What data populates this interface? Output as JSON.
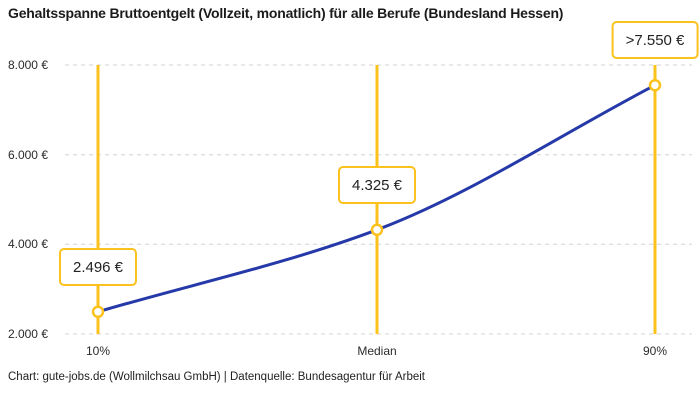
{
  "header": {
    "title": "Gehaltsspanne Bruttoentgelt (Vollzeit, monatlich) für alle Berufe (Bundesland Hessen)"
  },
  "footer": {
    "attribution": "Chart: gute-jobs.de (Wollmilchsau GmbH) | Datenquelle: Bundesagentur für Arbeit"
  },
  "colors": {
    "accent_yellow": "#FBC21E",
    "line_blue": "#2639A8",
    "gridline": "#D3D3D3",
    "marker_fill": "#FFFFFF"
  },
  "chart_data": {
    "type": "line",
    "title": "Gehaltsspanne Bruttoentgelt (Vollzeit, monatlich) für alle Berufe (Bundesland Hessen)",
    "categories": [
      "10%",
      "Median",
      "90%"
    ],
    "values": [
      2496,
      4325,
      7550
    ],
    "point_labels": [
      "2.496 €",
      "4.325 €",
      ">7.550 €"
    ],
    "ylim": [
      2000,
      8000
    ],
    "ytick_values": [
      2000,
      4000,
      6000,
      8000
    ],
    "ytick_labels": [
      "2.000 €",
      "4.000 €",
      "6.000 €",
      "8.000 €"
    ],
    "grid": "horizontal-dashed",
    "legend": "none",
    "source": "Chart: gute-jobs.de (Wollmilchsau GmbH) | Datenquelle: Bundesagentur für Arbeit"
  }
}
